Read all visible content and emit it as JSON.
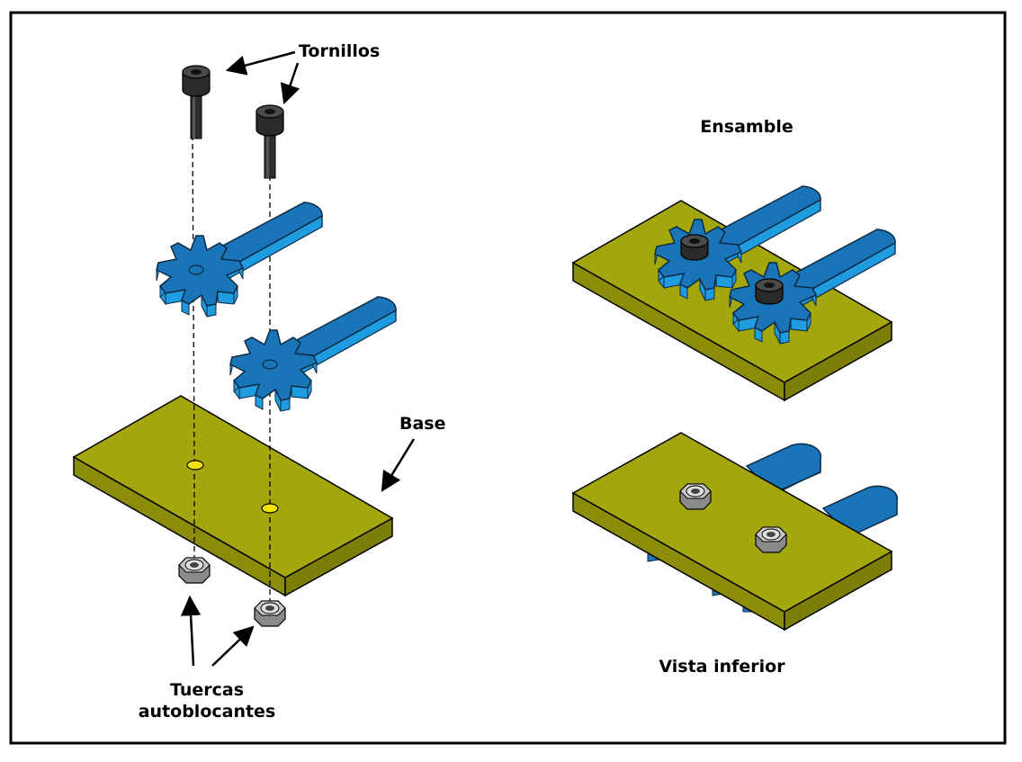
{
  "labels": {
    "screws": "Tornillos",
    "base": "Base",
    "nuts_line1": "Tuercas",
    "nuts_line2": "autoblocantes",
    "assembly": "Ensamble",
    "bottom_view": "Vista inferior"
  },
  "colors": {
    "frame": "#000000",
    "background": "#ffffff",
    "base_top": "#a3a60d",
    "base_side": "#8a8c0a",
    "gear_top": "#1a75b8",
    "gear_side": "#1f9be0",
    "screw": "#333333",
    "nut": "#b8b8b8",
    "hole": "#f2e400"
  }
}
